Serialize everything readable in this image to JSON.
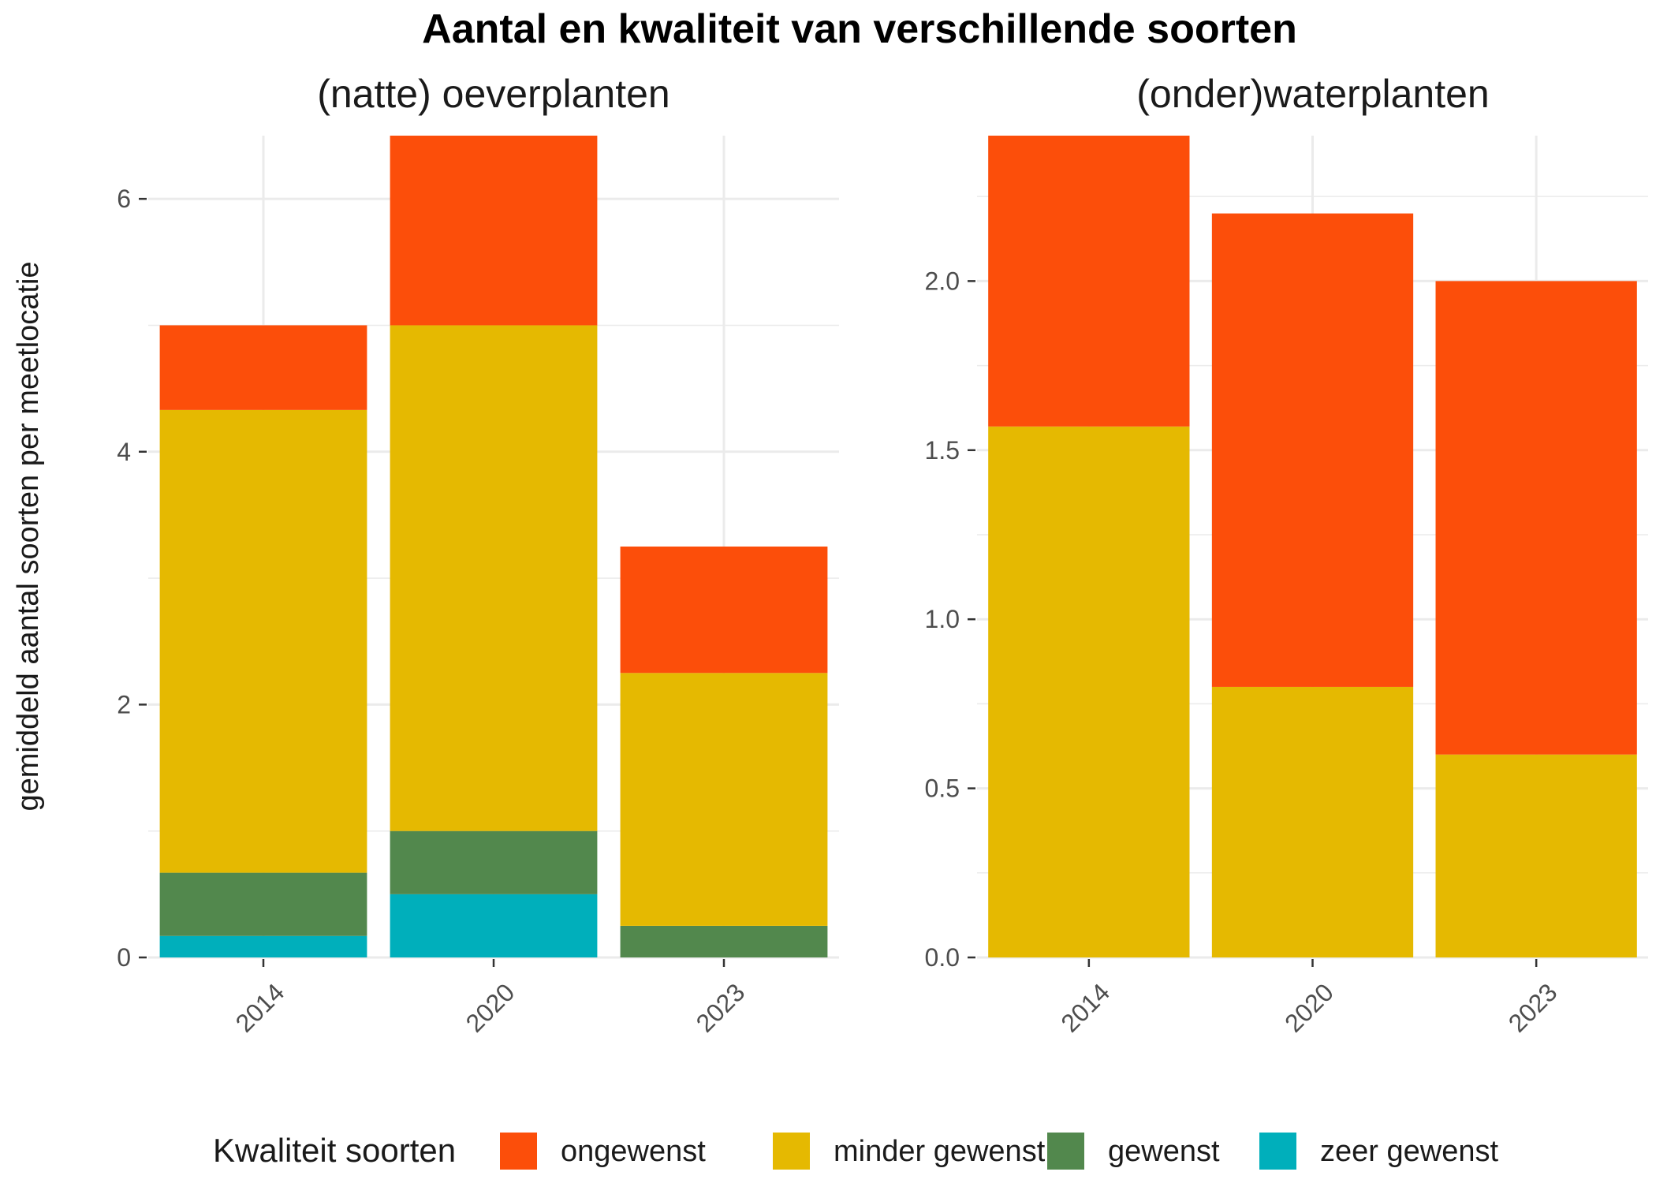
{
  "chart_data": {
    "type": "bar",
    "stacked": true,
    "title": "Aantal en kwaliteit van verschillende soorten",
    "ylabel": "gemiddeld aantal soorten per meetlocatie",
    "legend": {
      "title": "Kwaliteit soorten",
      "placement": "bottom",
      "entries": [
        "ongewenst",
        "minder gewenst",
        "gewenst",
        "zeer gewenst"
      ]
    },
    "colors": {
      "ongewenst": "#FC4E0A",
      "minder gewenst": "#E5B901",
      "gewenst": "#52884D",
      "zeer gewenst": "#00AFBB"
    },
    "grid": true,
    "panels": [
      {
        "title": "(natte) oeverplanten",
        "categories": [
          "2014",
          "2020",
          "2023"
        ],
        "ylim": [
          0,
          6.5
        ],
        "yticks": [
          0,
          2,
          4,
          6
        ],
        "yticklabels": [
          "0",
          "2",
          "4",
          "6"
        ],
        "series": [
          {
            "name": "zeer gewenst",
            "values": [
              0.17,
              0.5,
              0
            ]
          },
          {
            "name": "gewenst",
            "values": [
              0.5,
              0.5,
              0.25
            ]
          },
          {
            "name": "minder gewenst",
            "values": [
              3.66,
              4.0,
              2.0
            ]
          },
          {
            "name": "ongewenst",
            "values": [
              0.67,
              1.5,
              1.0
            ]
          }
        ]
      },
      {
        "title": "(onder)waterplanten",
        "categories": [
          "2014",
          "2020",
          "2023"
        ],
        "ylim": [
          0,
          2.43
        ],
        "yticks": [
          0,
          0.5,
          1.0,
          1.5,
          2.0
        ],
        "yticklabels": [
          "0.0",
          "0.5",
          "1.0",
          "1.5",
          "2.0"
        ],
        "series": [
          {
            "name": "zeer gewenst",
            "values": [
              0,
              0,
              0
            ]
          },
          {
            "name": "gewenst",
            "values": [
              0,
              0,
              0
            ]
          },
          {
            "name": "minder gewenst",
            "values": [
              1.57,
              0.8,
              0.6
            ]
          },
          {
            "name": "ongewenst",
            "values": [
              0.86,
              1.4,
              1.4
            ]
          }
        ]
      }
    ]
  }
}
